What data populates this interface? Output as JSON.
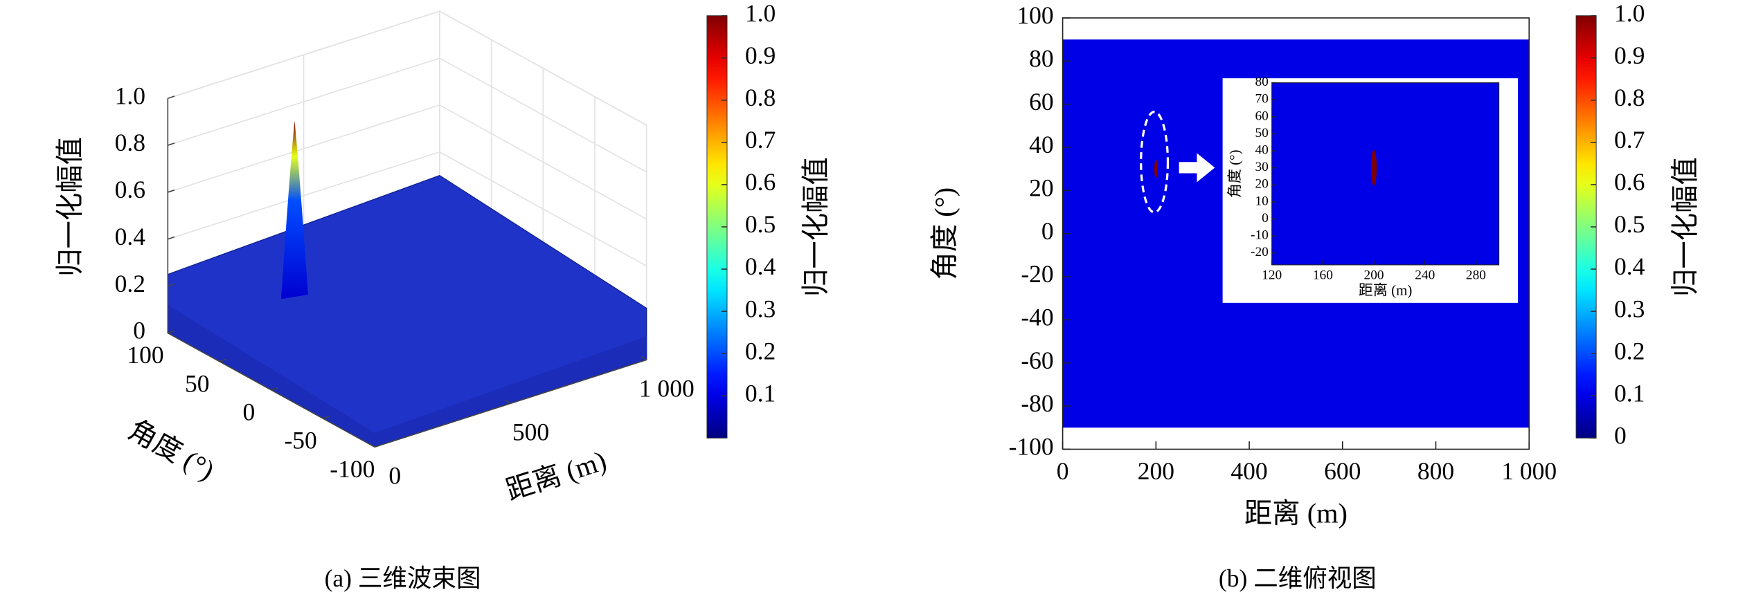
{
  "chart_data": [
    {
      "type": "surface3d",
      "caption": "(a) 三维波束图",
      "xlabel": "距离 (m)",
      "ylabel": "角度 (°)",
      "zlabel": "归一化幅值",
      "xlim": [
        0,
        1000
      ],
      "xticks": [
        0,
        500,
        {
          "value": 1000,
          "label": "1 000"
        }
      ],
      "ylim": [
        -100,
        100
      ],
      "yticks": [
        100,
        50,
        0,
        -50,
        -100
      ],
      "zlim": [
        0,
        1
      ],
      "zticks": [
        0,
        0.2,
        0.4,
        0.6,
        0.8,
        {
          "value": 1,
          "label": "1.0"
        }
      ],
      "grid": true,
      "colormap": "jet",
      "colorbar": {
        "label": "归一化幅值",
        "lim": [
          0,
          1
        ],
        "ticks": [
          0.1,
          0.2,
          0.3,
          0.4,
          0.5,
          0.6,
          0.7,
          0.8,
          0.9,
          {
            "value": 1,
            "label": "1.0"
          }
        ]
      },
      "peak": {
        "x": 200,
        "y": 30,
        "z": 1
      }
    },
    {
      "type": "heatmap",
      "caption": "(b) 二维俯视图",
      "xlabel": "距离 (m)",
      "ylabel": "角度 (°)",
      "xlim": [
        0,
        1000
      ],
      "xticks": [
        0,
        200,
        400,
        600,
        800,
        {
          "value": 1000,
          "label": "1 000"
        }
      ],
      "ylim": [
        -100,
        100
      ],
      "yticks": [
        100,
        80,
        60,
        40,
        20,
        0,
        -20,
        -40,
        -60,
        -80,
        -100
      ],
      "image_x": [
        0,
        1000
      ],
      "image_y": [
        -90,
        90
      ],
      "colormap": "jet",
      "colorbar": {
        "label": "归一化幅值",
        "lim": [
          0,
          1
        ],
        "ticks": [
          0,
          0.1,
          0.2,
          0.3,
          0.4,
          0.5,
          0.6,
          0.7,
          0.8,
          0.9,
          {
            "value": 1,
            "label": "1.0"
          }
        ]
      },
      "peak": {
        "x": 200,
        "y": 30,
        "value": 1
      }
    },
    {
      "type": "heatmap",
      "xlabel": "距离 (m)",
      "ylabel": "角度 (°)",
      "xlim": [
        120,
        298
      ],
      "xticks": [
        120,
        160,
        200,
        240,
        280
      ],
      "ylim": [
        -27,
        80
      ],
      "yticks": [
        80,
        70,
        60,
        50,
        40,
        30,
        20,
        10,
        0,
        -10,
        -20
      ],
      "colormap": "jet",
      "peak": {
        "x": 200,
        "y": 30,
        "value": 1
      }
    }
  ]
}
